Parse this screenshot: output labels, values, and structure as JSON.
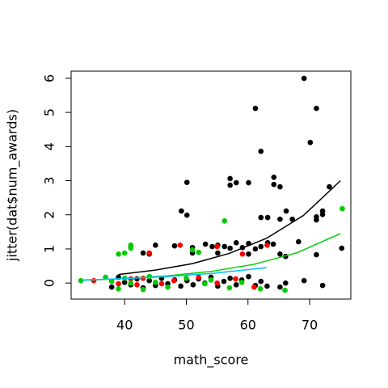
{
  "chart_data": {
    "type": "scatter",
    "xlabel": "math_score",
    "ylabel": "jitter(dat$num_awards)",
    "xlim": [
      31.32,
      76.68
    ],
    "ylim": [
      -0.47,
      6.21
    ],
    "xticks": [
      40,
      50,
      60,
      70
    ],
    "yticks": [
      0,
      1,
      2,
      3,
      4,
      5,
      6
    ],
    "grid": false,
    "series": [
      {
        "mode": "points",
        "color": "#000000",
        "x": [
          69.1,
          61.2,
          71.1,
          62.1,
          70.1,
          50.1,
          57.1,
          57.1,
          58.1,
          60.1,
          64.2,
          64.2,
          65.2,
          73.2,
          49.2,
          50.1,
          62.1,
          63.2,
          65.2,
          66.2,
          67.2,
          71.1,
          71.1,
          72.1,
          72.1,
          68.2,
          75.2,
          71.1,
          41,
          45,
          48.1,
          51,
          53.1,
          54.2,
          55.1,
          56.2,
          57.1,
          58.1,
          59.1,
          60.1,
          61.2,
          62.1,
          64.1,
          51,
          55.1,
          44,
          43,
          60.1,
          65.2,
          66.1,
          63.2,
          37.9,
          39,
          40,
          41,
          42,
          43,
          44,
          45,
          46,
          47,
          48.1,
          49.1,
          50.1,
          51.1,
          52,
          53,
          54,
          55.1,
          56.1,
          57.1,
          58.1,
          59,
          60.1,
          61.2,
          62.1,
          63.1,
          65.2,
          66.1,
          69.1,
          72.1
        ],
        "values": [
          6.0,
          5.12,
          5.12,
          3.86,
          4.12,
          2.95,
          3.06,
          2.87,
          2.94,
          2.94,
          3.1,
          2.89,
          2.82,
          2.82,
          2.11,
          1.99,
          1.92,
          1.92,
          1.87,
          2.11,
          1.87,
          1.94,
          1.85,
          2.11,
          2.01,
          1.21,
          1.02,
          0.83,
          1.07,
          1.11,
          1.09,
          1.04,
          1.14,
          1.07,
          1.11,
          1.07,
          1.02,
          1.18,
          1.04,
          1.16,
          1.0,
          1.07,
          1.14,
          0.88,
          0.88,
          0.85,
          0.88,
          0.85,
          0.85,
          0.78,
          1.18,
          -0.12,
          0.17,
          0.02,
          -0.05,
          0.12,
          -0.14,
          0.07,
          -0.07,
          0.14,
          -0.02,
          0.09,
          -0.09,
          0.07,
          -0.05,
          0.12,
          0,
          0.17,
          -0.09,
          0.05,
          0.14,
          -0.05,
          0.09,
          0.19,
          -0.07,
          0.05,
          -0.09,
          -0.12,
          0,
          0.07,
          -0.07
        ]
      },
      {
        "mode": "points",
        "color": "#ff0000",
        "x": [
          49,
          55,
          63.1,
          44,
          59.1,
          41,
          42,
          43,
          46,
          48,
          52,
          55,
          58,
          61,
          35,
          39
        ],
        "values": [
          1.11,
          1.07,
          1.11,
          0.88,
          0.85,
          0.12,
          -0.05,
          0.14,
          -0.02,
          0.07,
          0.17,
          0,
          0.12,
          -0.12,
          0.07,
          -0.02
        ]
      },
      {
        "mode": "points",
        "color": "#00cd00",
        "x": [
          75.3,
          56.2,
          41,
          41,
          51,
          52,
          39,
          40,
          32.9,
          36.9,
          37.9,
          39,
          40,
          41,
          43,
          44,
          45,
          47,
          50,
          53,
          54,
          57,
          59,
          62,
          66
        ],
        "values": [
          2.18,
          1.82,
          1.11,
          1.02,
          0.97,
          0.9,
          0.85,
          0.88,
          0.07,
          0.17,
          0.05,
          -0.17,
          0.14,
          0,
          -0.19,
          0.19,
          0.02,
          -0.12,
          0.14,
          -0.02,
          0.09,
          -0.14,
          0.02,
          -0.17,
          -0.21
        ]
      },
      {
        "mode": "line",
        "color": "#000000",
        "x": [
          39,
          45,
          51,
          57,
          63,
          69,
          75
        ],
        "values": [
          0.25,
          0.38,
          0.57,
          0.87,
          1.31,
          1.98,
          3.0
        ]
      },
      {
        "mode": "line",
        "color": "#00cd00",
        "x": [
          33,
          40,
          47,
          54,
          61,
          68,
          75
        ],
        "values": [
          0.08,
          0.13,
          0.21,
          0.34,
          0.55,
          0.89,
          1.45
        ]
      },
      {
        "mode": "line",
        "color": "#00bfff",
        "x": [
          33,
          40,
          47,
          54,
          63
        ],
        "values": [
          0.09,
          0.13,
          0.19,
          0.28,
          0.45
        ]
      }
    ]
  }
}
